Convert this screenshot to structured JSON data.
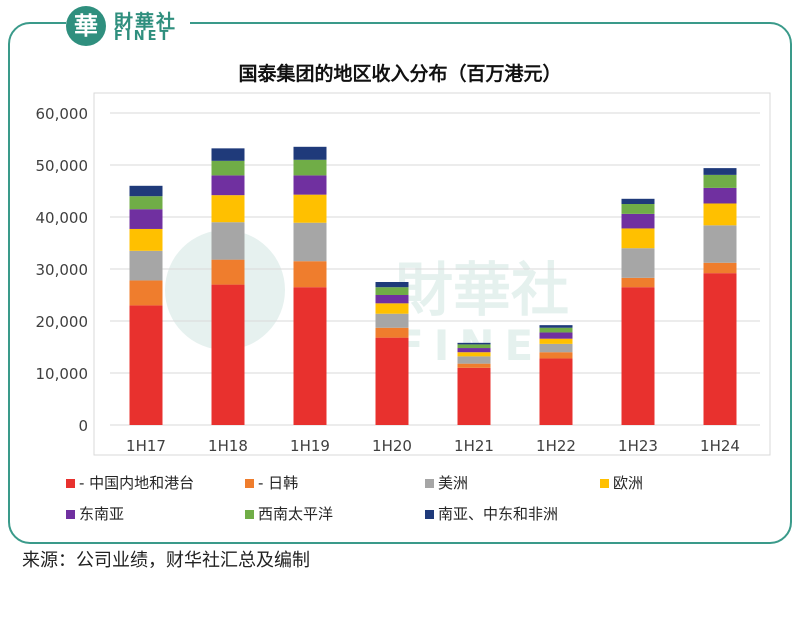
{
  "logo": {
    "glyph": "華",
    "cn": "財華社",
    "en": "FINET"
  },
  "watermark": {
    "cn": "財華社",
    "en": "FINET"
  },
  "source": "来源：公司业绩，财华社汇总及编制",
  "chart_data": {
    "type": "bar",
    "stacked": true,
    "title": "国泰集团的地区收入分布（百万港元）",
    "categories": [
      "1H17",
      "1H18",
      "1H19",
      "1H20",
      "1H21",
      "1H22",
      "1H23",
      "1H24"
    ],
    "ylim": [
      0,
      60000
    ],
    "yticks": [
      0,
      10000,
      20000,
      30000,
      40000,
      50000,
      60000
    ],
    "ytick_labels": [
      "0",
      "10,000",
      "20,000",
      "30,000",
      "40,000",
      "50,000",
      "60,000"
    ],
    "grid": true,
    "legend_position": "bottom",
    "series": [
      {
        "name": "- 中国内地和港台",
        "color": "#e8312e",
        "values": [
          23000,
          27000,
          26500,
          16800,
          11000,
          12800,
          26500,
          29200
        ]
      },
      {
        "name": "- 日韩",
        "color": "#ef7d2d",
        "values": [
          4800,
          4800,
          5000,
          1900,
          800,
          1200,
          1800,
          2000
        ]
      },
      {
        "name": "美洲",
        "color": "#a6a6a6",
        "values": [
          5700,
          7200,
          7400,
          2700,
          1400,
          1600,
          5700,
          7200
        ]
      },
      {
        "name": "欧洲",
        "color": "#ffc000",
        "values": [
          4200,
          5200,
          5400,
          2000,
          800,
          1000,
          3800,
          4200
        ]
      },
      {
        "name": "东南亚",
        "color": "#7030a0",
        "values": [
          3800,
          3800,
          3700,
          1600,
          800,
          1200,
          2800,
          3000
        ]
      },
      {
        "name": "西南太平洋",
        "color": "#70ad47",
        "values": [
          2500,
          2800,
          3000,
          1500,
          700,
          900,
          1900,
          2500
        ]
      },
      {
        "name": "南亚、中东和非洲",
        "color": "#1f3a7a",
        "values": [
          2000,
          2400,
          2500,
          1000,
          300,
          500,
          1000,
          1300
        ]
      }
    ]
  }
}
